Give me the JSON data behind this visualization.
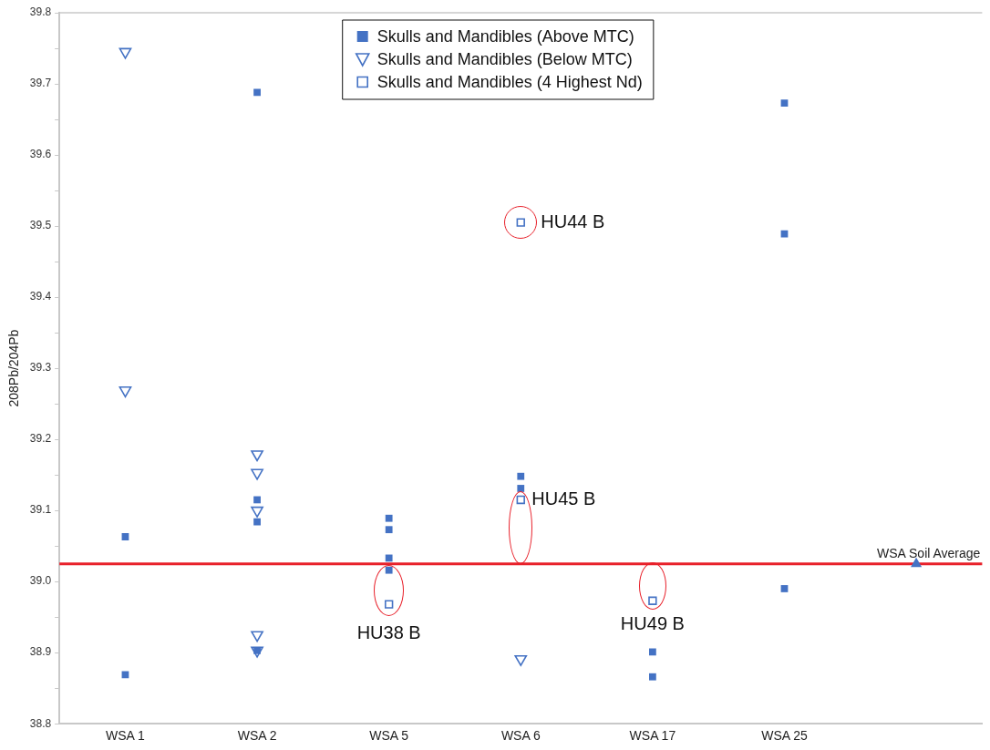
{
  "chart_data": {
    "type": "scatter",
    "ylabel": "208Pb/204Pb",
    "categories": [
      "WSA 1",
      "WSA 2",
      "WSA 5",
      "WSA 6",
      "WSA 17",
      "WSA 25",
      null
    ],
    "series": [
      {
        "name": "Skulls and Mandibles (Above MTC)",
        "color": "#4472c4",
        "marker": "square",
        "x": [
          "WSA 1",
          "WSA 1",
          "WSA 2",
          "WSA 2",
          "WSA 2",
          "WSA 2",
          "WSA 5",
          "WSA 5",
          "WSA 5",
          "WSA 5",
          "WSA 6",
          "WSA 6",
          "WSA 17",
          "WSA 17",
          "WSA 25",
          "WSA 25",
          "WSA 25"
        ],
        "values": [
          39.063,
          38.869,
          39.688,
          39.115,
          39.084,
          38.903,
          39.089,
          39.073,
          39.033,
          39.016,
          39.148,
          39.131,
          38.901,
          38.866,
          39.673,
          39.489,
          38.99
        ]
      },
      {
        "name": "Skulls and Mandibles (Below MTC)",
        "color": "#4472c4",
        "marker": "triangle",
        "x": [
          "WSA 1",
          "WSA 1",
          "WSA 2",
          "WSA 2",
          "WSA 2",
          "WSA 2",
          "WSA 2",
          "WSA 6"
        ],
        "values": [
          39.745,
          39.269,
          39.179,
          39.153,
          39.1,
          38.925,
          38.903,
          38.891
        ]
      },
      {
        "name": "Skulls and Mandibles (4 Highest Nd)",
        "color": "#4472c4",
        "marker": "square",
        "x": [
          "WSA 5",
          "WSA 6",
          "WSA 6",
          "WSA 17"
        ],
        "values": [
          38.968,
          39.505,
          39.115,
          38.973
        ]
      },
      {
        "color": "#4472c4",
        "marker": "triangle",
        "values": [
          null,
          null,
          null,
          null,
          null,
          null,
          39.025
        ]
      }
    ],
    "ylim": [
      38.8,
      39.8
    ],
    "yticks": [
      {
        "value": 38.8,
        "label": "38.8"
      },
      {
        "value": 38.85,
        "label": null
      },
      {
        "value": 38.9,
        "label": "38.9"
      },
      {
        "value": 38.95,
        "label": null
      },
      {
        "value": 39,
        "label": "39.0"
      },
      {
        "value": 39.05,
        "label": null
      },
      {
        "value": 39.1,
        "label": "39.1"
      },
      {
        "value": 39.15,
        "label": null
      },
      {
        "value": 39.2,
        "label": "39.2"
      },
      {
        "value": 39.25,
        "label": null
      },
      {
        "value": 39.3,
        "label": "39.3"
      },
      {
        "value": 39.35,
        "label": null
      },
      {
        "value": 39.4,
        "label": "39.4"
      },
      {
        "value": 39.45,
        "label": null
      },
      {
        "value": 39.5,
        "label": "39.5"
      },
      {
        "value": 39.55,
        "label": null
      },
      {
        "value": 39.6,
        "label": "39.6"
      },
      {
        "value": 39.65,
        "label": null
      },
      {
        "value": 39.7,
        "label": "39.7"
      },
      {
        "value": 39.75,
        "label": null
      },
      {
        "value": 39.8,
        "label": "39.8"
      }
    ],
    "ref_lines": [
      {
        "axis": "y",
        "value": 39.025,
        "label": "WSA Soil Average",
        "color": "#e8202a"
      }
    ],
    "annotations": [
      {
        "text": "HU44 B",
        "x": "WSA 6",
        "y": 39.505
      },
      {
        "text": "HU45 B",
        "x": "WSA 6",
        "y": 39.115
      },
      {
        "text": "HU38 B",
        "x": "WSA 5",
        "y": 38.968
      },
      {
        "text": "HU49 B",
        "x": "WSA 17",
        "y": 38.973
      }
    ],
    "legend": "top",
    "grid": false
  }
}
